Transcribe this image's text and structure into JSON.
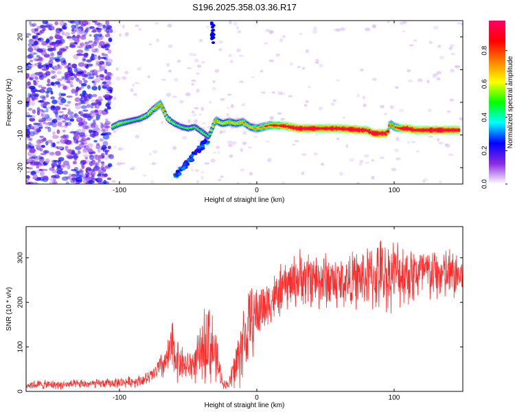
{
  "title": "S196.2025.358.03.36.R17",
  "chart_data": [
    {
      "type": "heatmap",
      "xlabel": "Height of straight line (km)",
      "ylabel": "Frequency (Hz)",
      "xlim": [
        -168,
        150
      ],
      "ylim": [
        -25,
        25
      ],
      "xticks": [
        -100,
        0,
        100
      ],
      "xtick_labels": [
        "-100",
        "0",
        "100"
      ],
      "yticks": [
        -20,
        -10,
        0,
        10,
        20
      ],
      "ytick_labels": [
        "-20",
        "-10",
        "0",
        "10",
        "20"
      ],
      "colorbar": {
        "label": "Normalized spectral amplitude",
        "range": [
          0,
          0.98
        ],
        "ticks": [
          0.0,
          0.2,
          0.4,
          0.6,
          0.8
        ],
        "tick_labels": [
          "0.0",
          "0.2",
          "0.4",
          "0.6",
          "0.8"
        ],
        "colors": [
          "#ffffff",
          "#8a2be2",
          "#0000ff",
          "#00ffff",
          "#00ff00",
          "#ffff00",
          "#ff7f00",
          "#ff0000",
          "#ff0066"
        ]
      },
      "ridge": {
        "x": [
          -105,
          -100,
          -95,
          -90,
          -85,
          -80,
          -75,
          -70,
          -65,
          -60,
          -55,
          -50,
          -45,
          -40,
          -35,
          -30,
          -25,
          -20,
          -15,
          -10,
          -5,
          0,
          10,
          20,
          30,
          40,
          50,
          60,
          70,
          75,
          80,
          85,
          90,
          95,
          97,
          100,
          105,
          110,
          115,
          120,
          130,
          140,
          148
        ],
        "y": [
          -7.5,
          -6.5,
          -6,
          -5.5,
          -5,
          -4,
          -2,
          -0.5,
          -5,
          -6.5,
          -7.5,
          -8,
          -7.5,
          -9,
          -10.5,
          -5.5,
          -6.5,
          -6,
          -6.5,
          -6,
          -7.5,
          -8,
          -7,
          -7.2,
          -8,
          -8,
          -8,
          -8,
          -8.3,
          -8.5,
          -8.5,
          -9.5,
          -9.5,
          -9.5,
          -6.5,
          -7.5,
          -8,
          -8,
          -8.5,
          -8.5,
          -8.5,
          -8.5,
          -8.5
        ],
        "amplitude": [
          0.35,
          0.4,
          0.35,
          0.3,
          0.35,
          0.4,
          0.5,
          0.6,
          0.45,
          0.35,
          0.3,
          0.35,
          0.3,
          0.35,
          0.3,
          0.6,
          0.45,
          0.55,
          0.5,
          0.6,
          0.5,
          0.55,
          0.7,
          0.8,
          0.9,
          0.9,
          0.85,
          0.85,
          0.9,
          0.9,
          0.85,
          0.9,
          0.9,
          0.85,
          0.55,
          0.6,
          0.85,
          0.9,
          0.85,
          0.9,
          0.9,
          0.9,
          0.85
        ]
      }
    },
    {
      "type": "line",
      "xlabel": "Height of straight line (km)",
      "ylabel": "SNR (10 * v/v)",
      "xlim": [
        -168,
        150
      ],
      "ylim": [
        0,
        370
      ],
      "xticks": [
        -100,
        0,
        100
      ],
      "xtick_labels": [
        "-100",
        "0",
        "100"
      ],
      "yticks": [
        0,
        100,
        200,
        300
      ],
      "ytick_labels": [
        "0",
        "100",
        "200",
        "300"
      ],
      "color": "#ff2a2a",
      "envelope": {
        "x": [
          -168,
          -140,
          -110,
          -90,
          -80,
          -75,
          -70,
          -65,
          -62,
          -60,
          -55,
          -50,
          -45,
          -40,
          -38,
          -35,
          -30,
          -25,
          -22,
          -20,
          -18,
          -15,
          -10,
          -5,
          0,
          5,
          10,
          15,
          20,
          30,
          40,
          50,
          60,
          70,
          80,
          90,
          100,
          110,
          120,
          130,
          140,
          150
        ],
        "mean": [
          15,
          15,
          18,
          22,
          28,
          38,
          55,
          70,
          95,
          85,
          65,
          55,
          65,
          90,
          110,
          120,
          75,
          20,
          15,
          18,
          35,
          60,
          110,
          150,
          175,
          190,
          205,
          215,
          235,
          255,
          255,
          250,
          245,
          250,
          255,
          260,
          265,
          265,
          265,
          262,
          262,
          260
        ],
        "spread": [
          10,
          10,
          10,
          12,
          14,
          20,
          30,
          40,
          70,
          60,
          40,
          35,
          45,
          60,
          85,
          110,
          60,
          12,
          10,
          14,
          40,
          60,
          90,
          80,
          70,
          60,
          55,
          55,
          55,
          60,
          65,
          65,
          60,
          60,
          70,
          80,
          75,
          70,
          65,
          60,
          60,
          60
        ]
      }
    }
  ]
}
